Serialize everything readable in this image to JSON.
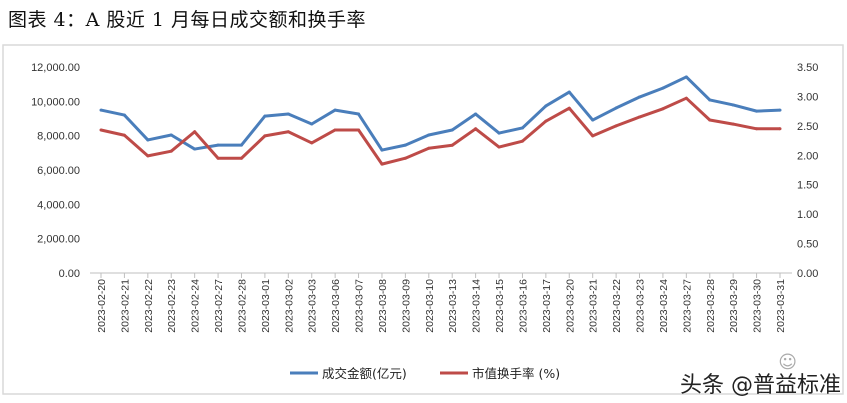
{
  "title": "图表 4：A 股近 1 月每日成交额和换手率",
  "watermark": "头条 @普益标准",
  "watermark_logo": "普益标准",
  "chart_data": {
    "type": "line",
    "title": "",
    "categories": [
      "2023-02-20",
      "2023-02-21",
      "2023-02-22",
      "2023-02-23",
      "2023-02-24",
      "2023-02-27",
      "2023-02-28",
      "2023-03-01",
      "2023-03-02",
      "2023-03-03",
      "2023-03-06",
      "2023-03-07",
      "2023-03-08",
      "2023-03-09",
      "2023-03-10",
      "2023-03-13",
      "2023-03-14",
      "2023-03-15",
      "2023-03-16",
      "2023-03-17",
      "2023-03-20",
      "2023-03-21",
      "2023-03-22",
      "2023-03-23",
      "2023-03-24",
      "2023-03-27",
      "2023-03-28",
      "2023-03-29",
      "2023-03-30",
      "2023-03-31"
    ],
    "y_left": {
      "range": [
        0,
        12000
      ],
      "ticks": [
        "0.00",
        "2,000.00",
        "4,000.00",
        "6,000.00",
        "8,000.00",
        "10,000.00",
        "12,000.00"
      ]
    },
    "y_right": {
      "range": [
        0,
        3.5
      ],
      "ticks": [
        "0.00",
        "0.50",
        "1.00",
        "1.50",
        "2.00",
        "2.50",
        "3.00",
        "3.50"
      ]
    },
    "grid": false,
    "legend_position": "bottom",
    "series": [
      {
        "name": "成交金额(亿元)",
        "axis": "left",
        "color": "#4a7ebb",
        "values": [
          9490,
          9200,
          7750,
          8040,
          7220,
          7450,
          7450,
          9140,
          9260,
          8680,
          9490,
          9260,
          7160,
          7450,
          8040,
          8330,
          9260,
          8150,
          8450,
          9730,
          10540,
          8910,
          9610,
          10250,
          10770,
          11420,
          10080,
          9790,
          9430,
          9490
        ]
      },
      {
        "name": "市值换手率 (%)",
        "axis": "right",
        "color": "#be4b48",
        "values": [
          2.43,
          2.34,
          1.99,
          2.07,
          2.4,
          1.95,
          1.95,
          2.33,
          2.4,
          2.21,
          2.43,
          2.43,
          1.85,
          1.95,
          2.12,
          2.17,
          2.45,
          2.14,
          2.24,
          2.58,
          2.8,
          2.33,
          2.5,
          2.65,
          2.79,
          2.97,
          2.6,
          2.53,
          2.45,
          2.45
        ]
      }
    ]
  }
}
